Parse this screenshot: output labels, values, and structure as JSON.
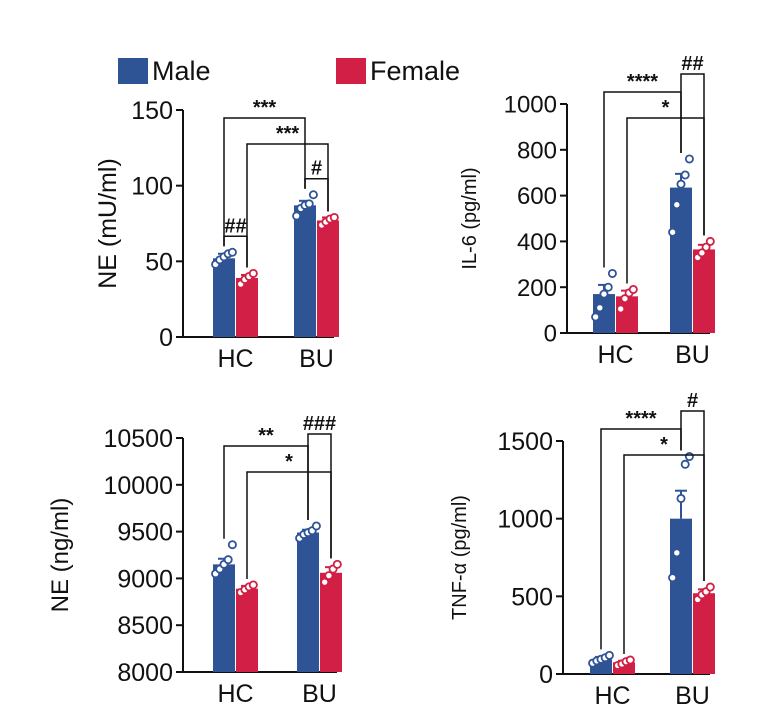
{
  "colors": {
    "male": "#2f5496",
    "female": "#d11f45",
    "axis": "#111111",
    "dot_fill": "#ffffff"
  },
  "legend": [
    {
      "name": "Male",
      "color": "#2f5496"
    },
    {
      "name": "Female",
      "color": "#d11f45"
    }
  ],
  "chart_data": [
    {
      "id": "ne-plasma",
      "type": "bar",
      "title": "",
      "ylabel": "NE (mU/ml)",
      "xlabel": "",
      "categories": [
        "HC",
        "BU"
      ],
      "ylim": [
        0,
        150
      ],
      "yticks": [
        0,
        50,
        100,
        150
      ],
      "series": [
        {
          "name": "Male",
          "values": [
            52,
            87
          ],
          "errors": [
            3,
            3
          ],
          "points": [
            [
              48,
              51,
              53,
              55,
              56
            ],
            [
              80,
              85,
              87,
              88,
              94
            ]
          ]
        },
        {
          "name": "Female",
          "values": [
            39,
            77
          ],
          "errors": [
            2,
            2
          ],
          "points": [
            [
              35,
              38,
              40,
              42
            ],
            [
              74,
              76,
              78,
              79
            ]
          ]
        }
      ],
      "annotations": [
        {
          "text": "***",
          "from": [
            0,
            0
          ],
          "to": [
            1,
            0
          ]
        },
        {
          "text": "***",
          "from": [
            0,
            1
          ],
          "to": [
            1,
            1
          ]
        },
        {
          "text": "##",
          "from": [
            0,
            0
          ],
          "to": [
            0,
            1
          ]
        },
        {
          "text": "#",
          "from": [
            1,
            0
          ],
          "to": [
            1,
            1
          ]
        }
      ]
    },
    {
      "id": "il6",
      "type": "bar",
      "title": "",
      "ylabel": "IL-6 (pg/ml)",
      "xlabel": "",
      "categories": [
        "HC",
        "BU"
      ],
      "ylim": [
        0,
        1000
      ],
      "yticks": [
        0,
        200,
        400,
        600,
        800,
        1000
      ],
      "series": [
        {
          "name": "Male",
          "values": [
            170,
            635
          ],
          "errors": [
            40,
            60
          ],
          "points": [
            [
              70,
              110,
              170,
              200,
              260
            ],
            [
              440,
              560,
              650,
              690,
              760
            ]
          ]
        },
        {
          "name": "Female",
          "values": [
            160,
            365
          ],
          "errors": [
            25,
            20
          ],
          "points": [
            [
              105,
              150,
              175,
              190
            ],
            [
              330,
              350,
              375,
              400
            ]
          ]
        }
      ],
      "annotations": [
        {
          "text": "****",
          "from": [
            0,
            0
          ],
          "to": [
            1,
            0
          ]
        },
        {
          "text": "*",
          "from": [
            0,
            1
          ],
          "to": [
            1,
            1
          ]
        },
        {
          "text": "##",
          "from": [
            1,
            0
          ],
          "to": [
            1,
            1
          ]
        }
      ]
    },
    {
      "id": "ne-tissue",
      "type": "bar",
      "title": "",
      "ylabel": "NE (ng/ml)",
      "xlabel": "",
      "categories": [
        "HC",
        "BU"
      ],
      "ylim": [
        8000,
        10500
      ],
      "yticks": [
        8000,
        8500,
        9000,
        9500,
        10000,
        10500
      ],
      "series": [
        {
          "name": "Male",
          "values": [
            9150,
            9490
          ],
          "errors": [
            60,
            30
          ],
          "points": [
            [
              9050,
              9100,
              9150,
              9200,
              9360
            ],
            [
              9430,
              9470,
              9490,
              9510,
              9560
            ]
          ]
        },
        {
          "name": "Female",
          "values": [
            8890,
            9060
          ],
          "errors": [
            30,
            60
          ],
          "points": [
            [
              8850,
              8880,
              8910,
              8930
            ],
            [
              8960,
              9030,
              9100,
              9150
            ]
          ]
        }
      ],
      "annotations": [
        {
          "text": "**",
          "from": [
            0,
            0
          ],
          "to": [
            1,
            0
          ]
        },
        {
          "text": "*",
          "from": [
            0,
            1
          ],
          "to": [
            1,
            1
          ]
        },
        {
          "text": "###",
          "from": [
            1,
            0
          ],
          "to": [
            1,
            1
          ]
        }
      ]
    },
    {
      "id": "tnfa",
      "type": "bar",
      "title": "",
      "ylabel": "TNF-α (pg/ml)",
      "xlabel": "",
      "categories": [
        "HC",
        "BU"
      ],
      "ylim": [
        0,
        1500
      ],
      "yticks": [
        0,
        500,
        1000,
        1500
      ],
      "series": [
        {
          "name": "Male",
          "values": [
            95,
            1000
          ],
          "errors": [
            15,
            180
          ],
          "points": [
            [
              70,
              85,
              95,
              105,
              120
            ],
            [
              620,
              780,
              1130,
              1350,
              1400
            ]
          ]
        },
        {
          "name": "Female",
          "values": [
            75,
            520
          ],
          "errors": [
            10,
            25
          ],
          "points": [
            [
              55,
              65,
              80,
              90
            ],
            [
              480,
              510,
              530,
              560
            ]
          ]
        }
      ],
      "annotations": [
        {
          "text": "****",
          "from": [
            0,
            0
          ],
          "to": [
            1,
            0
          ]
        },
        {
          "text": "*",
          "from": [
            0,
            1
          ],
          "to": [
            1,
            1
          ]
        },
        {
          "text": "#",
          "from": [
            1,
            0
          ],
          "to": [
            1,
            1
          ]
        }
      ]
    }
  ]
}
